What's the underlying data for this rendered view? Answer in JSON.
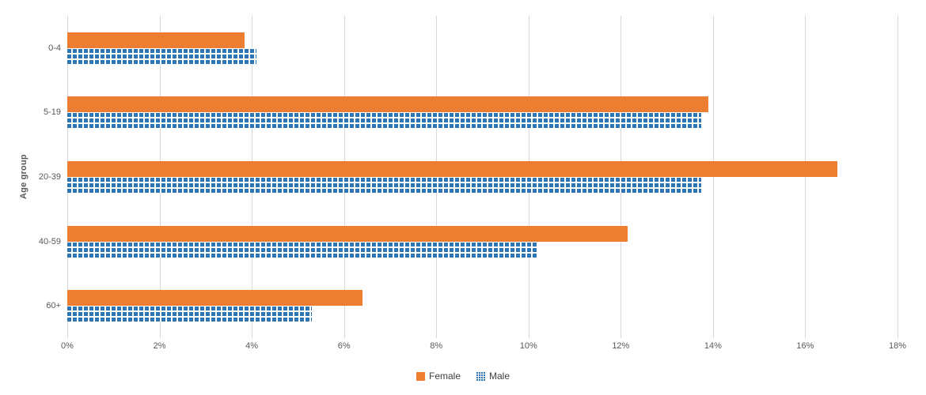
{
  "chart_data": {
    "type": "bar",
    "orientation": "horizontal",
    "title": "",
    "xlabel": "",
    "ylabel": "Age group",
    "categories": [
      "0-4",
      "5-19",
      "20-39",
      "40-59",
      "60+"
    ],
    "series": [
      {
        "name": "Female",
        "color": "#ED7D31",
        "pattern": "solid",
        "values": [
          3.85,
          13.9,
          16.7,
          12.15,
          6.4
        ]
      },
      {
        "name": "Male",
        "color": "#2E75B6",
        "pattern": "checker-grid",
        "values": [
          4.1,
          13.75,
          13.75,
          10.2,
          5.3
        ]
      }
    ],
    "xlim": [
      0,
      18
    ],
    "x_tick_values": [
      0,
      2,
      4,
      6,
      8,
      10,
      12,
      14,
      16,
      18
    ],
    "x_tick_labels": [
      "0%",
      "2%",
      "4%",
      "6%",
      "8%",
      "10%",
      "12%",
      "14%",
      "16%",
      "18%"
    ],
    "grid": true,
    "gridline_color": "#d9d9d9",
    "axis_text_color": "#595959",
    "legend_position": "bottom",
    "legend_entries": [
      "Female",
      "Male"
    ]
  }
}
